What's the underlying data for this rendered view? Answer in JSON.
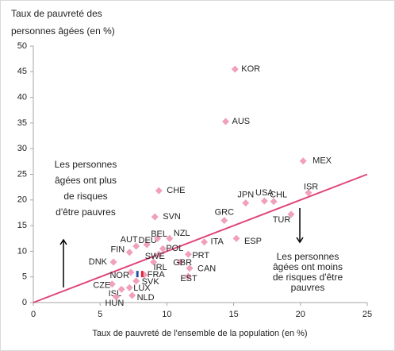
{
  "chart_data": {
    "type": "scatter",
    "y_label_lines": [
      "Taux de pauvreté des",
      "personnes âgées (en %)"
    ],
    "x_label": "Taux de pauvreté de l'ensemble de la population (en %)",
    "xlim": [
      0,
      25
    ],
    "xticks": [
      0,
      5,
      10,
      15,
      20,
      25
    ],
    "ylim": [
      0,
      50
    ],
    "yticks": [
      0,
      5,
      10,
      15,
      20,
      25,
      30,
      35,
      40,
      45,
      50
    ],
    "color": "#f0a0bd",
    "points": {
      "labels": [
        "KOR",
        "AUS",
        "MEX",
        "CHE",
        "JPN",
        "USA",
        "CHL",
        "ISR",
        "TUR",
        "SVN",
        "GRC",
        "ESP",
        "ITA",
        "AUT",
        "DEU",
        "BEL",
        "NZL",
        "FIN",
        "POL",
        "SWE",
        "PRT",
        "DNK",
        "IRL",
        "GBR",
        "CAN",
        "FRA",
        "EST",
        "NOR",
        "SVK",
        "CZE",
        "LUX",
        "ISL",
        "NLD",
        "HUN"
      ],
      "x": [
        15.1,
        14.4,
        20.2,
        9.4,
        15.9,
        17.3,
        18.0,
        20.6,
        19.3,
        9.1,
        14.3,
        15.2,
        12.8,
        7.7,
        8.5,
        9.3,
        10.2,
        7.2,
        9.7,
        9.4,
        11.6,
        6.0,
        9.0,
        11.0,
        11.7,
        8.3,
        11.6,
        7.3,
        7.7,
        5.9,
        7.2,
        6.6,
        7.4,
        6.2
      ],
      "y": [
        45.5,
        35.3,
        27.6,
        21.8,
        19.4,
        19.8,
        19.7,
        21.4,
        17.2,
        16.7,
        16.0,
        12.5,
        11.8,
        11.0,
        11.3,
        12.5,
        12.5,
        9.8,
        10.5,
        9.4,
        9.4,
        7.9,
        7.9,
        7.9,
        6.7,
        5.4,
        5.1,
        5.9,
        4.2,
        3.6,
        2.9,
        2.6,
        1.4,
        1.1
      ]
    },
    "reference_line": {
      "x": [
        0,
        25
      ],
      "y": [
        0,
        25
      ],
      "color": "#e0457b"
    },
    "annotations": [
      {
        "lines": [
          "Les personnes",
          "âgées ont plus",
          "de risques",
          "d'être pauvres"
        ],
        "arrow": "up"
      },
      {
        "lines": [
          "Les personnes",
          "âgées ont moins",
          "de risques d'être",
          "pauvres"
        ],
        "arrow": "down"
      }
    ]
  }
}
